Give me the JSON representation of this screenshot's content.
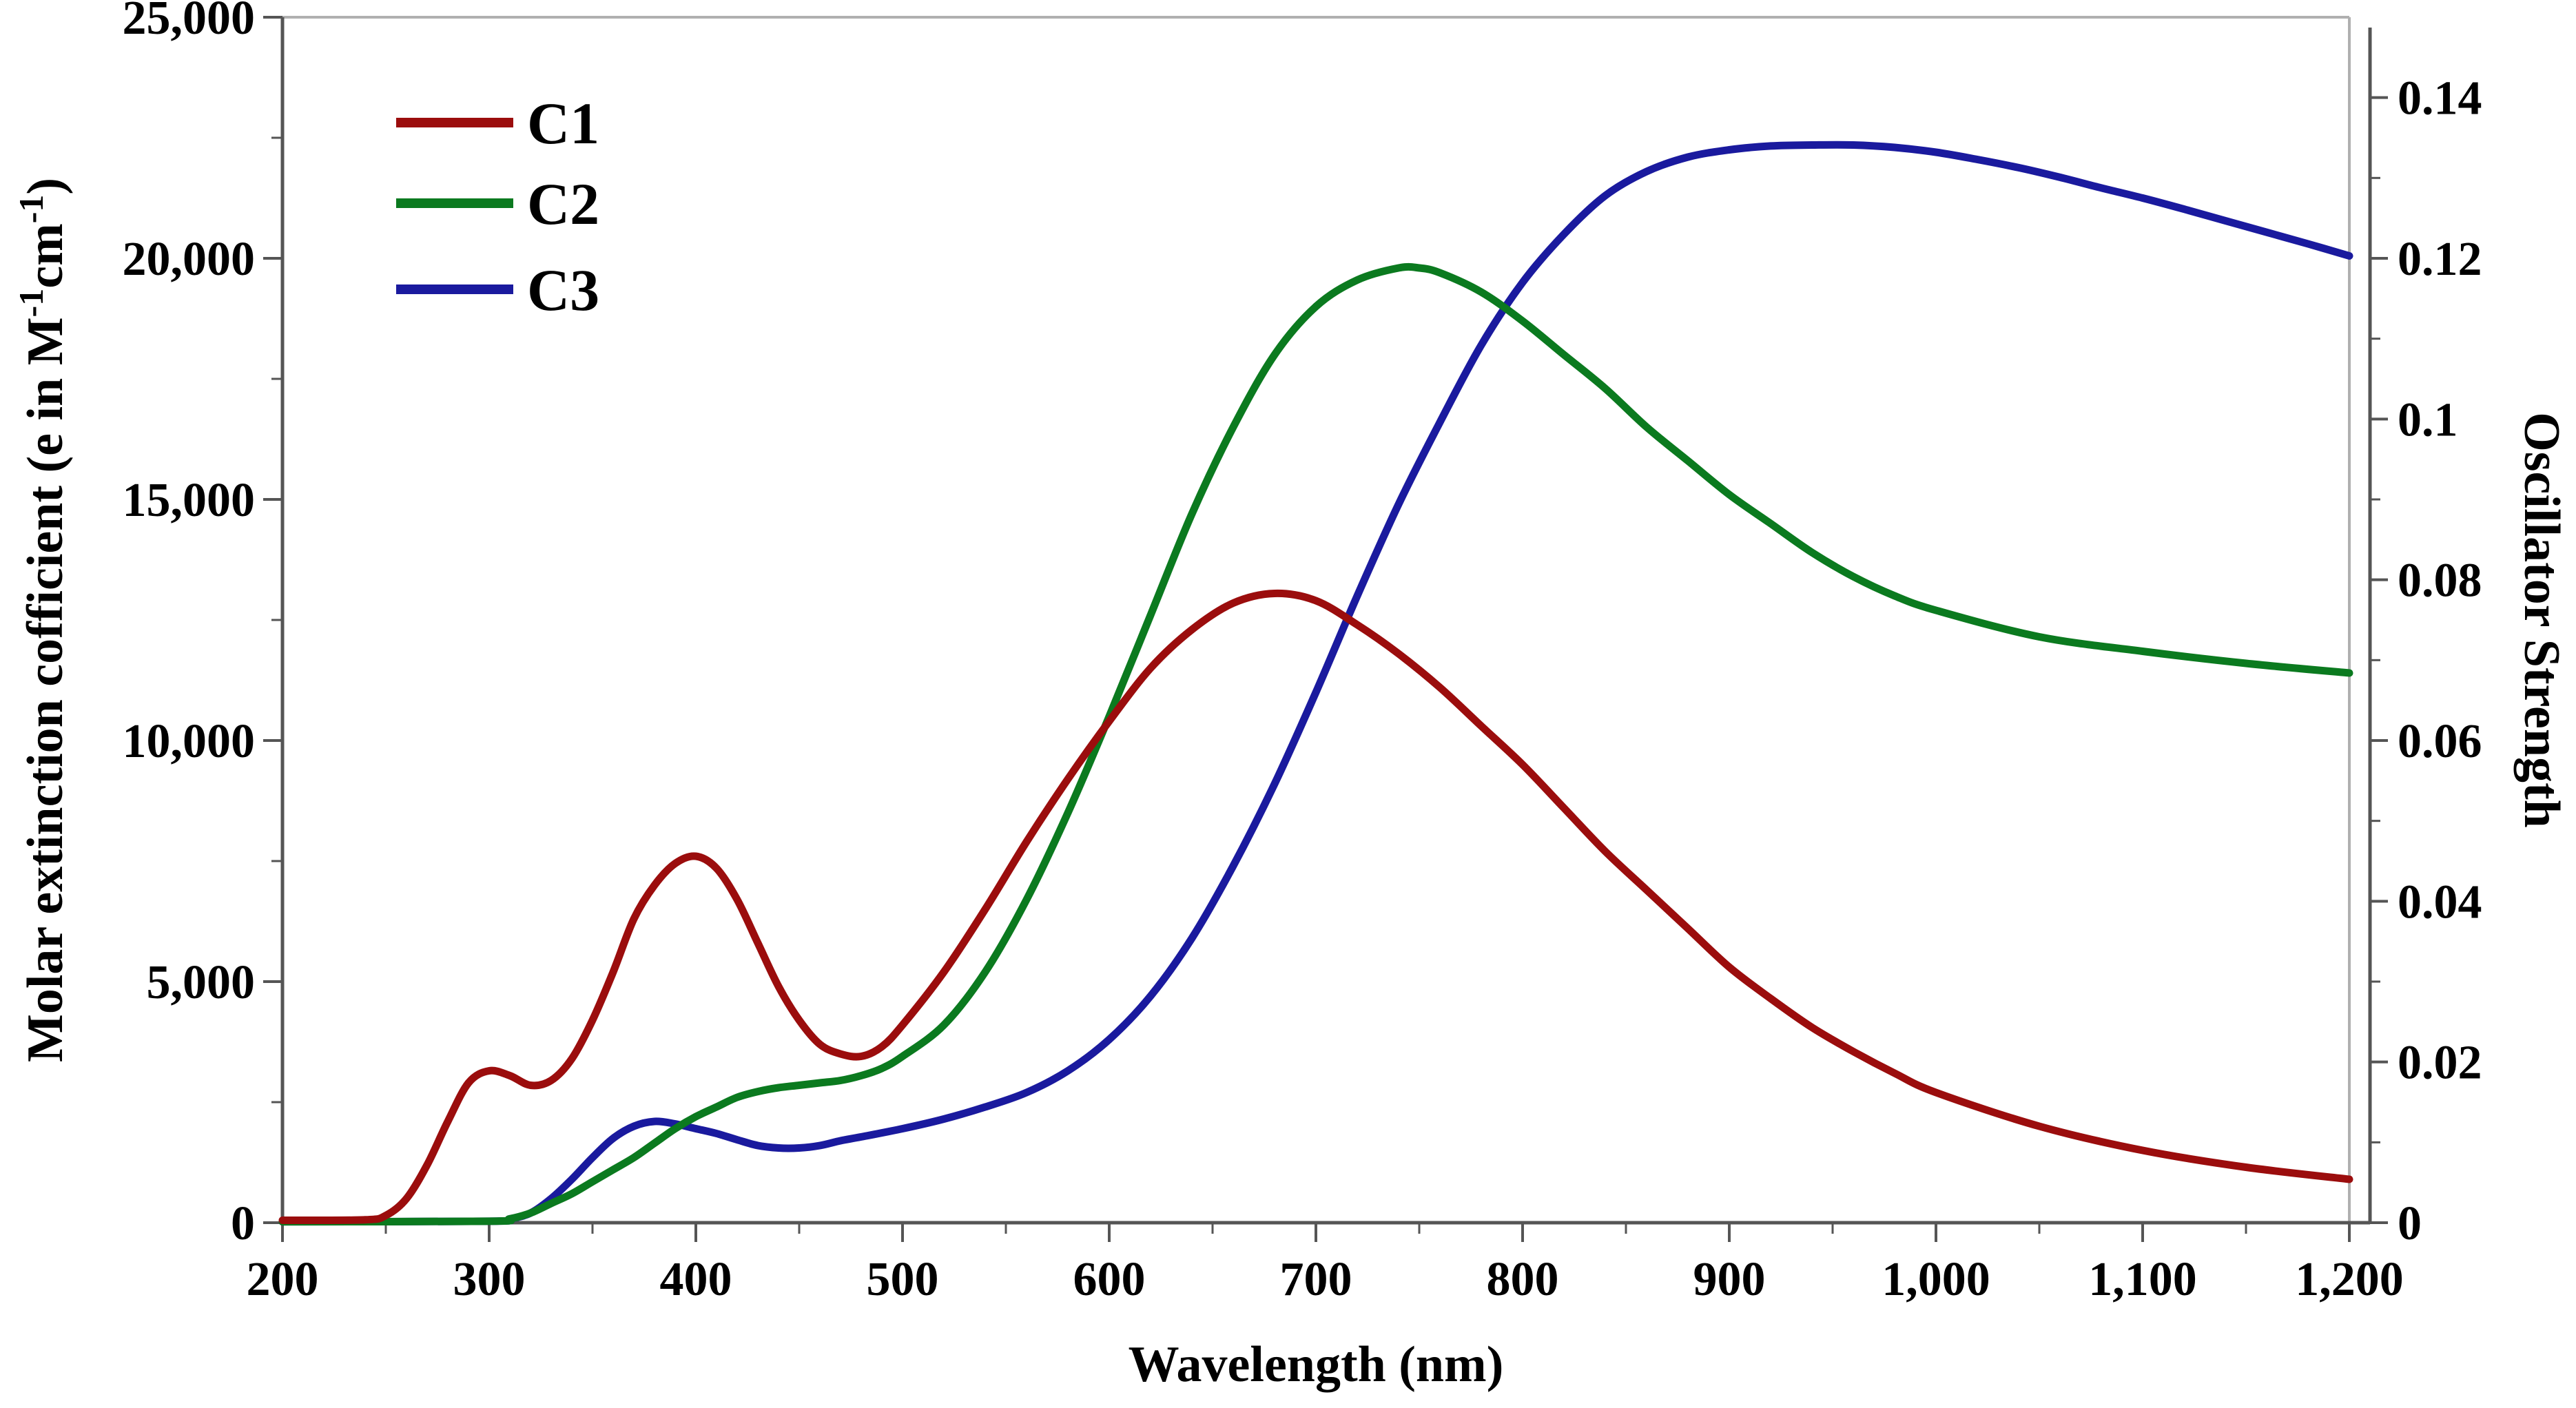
{
  "chart_data": {
    "type": "line",
    "title": "",
    "xlabel": "Wavelength (nm)",
    "ylabel_main": "Molar extinction cofficient (e in M",
    "ylabel_sup1": "-1",
    "ylabel_mid": "cm",
    "ylabel_sup2": "-1",
    "ylabel_end": ")",
    "y2label": "Oscillator Strength",
    "xlim": [
      200,
      1200
    ],
    "ylim": [
      0,
      25000
    ],
    "y2lim": [
      0,
      0.15
    ],
    "x_ticks": [
      200,
      300,
      400,
      500,
      600,
      700,
      800,
      900,
      1000,
      1100,
      1200
    ],
    "x_tick_labels": [
      "200",
      "300",
      "400",
      "500",
      "600",
      "700",
      "800",
      "900",
      "1,000",
      "1,100",
      "1,200"
    ],
    "y_ticks": [
      0,
      5000,
      10000,
      15000,
      20000,
      25000
    ],
    "y_tick_labels": [
      "0",
      "5,000",
      "10,000",
      "15,000",
      "20,000",
      "25,000"
    ],
    "y2_ticks": [
      0,
      0.02,
      0.04,
      0.06,
      0.08,
      0.1,
      0.12,
      0.14
    ],
    "y2_tick_labels": [
      "0",
      "0.02",
      "0.04",
      "0.06",
      "0.08",
      "0.1",
      "0.12",
      "0.14"
    ],
    "grid": false,
    "legend_position": "top-left",
    "series": [
      {
        "name": "C1",
        "color": "#9b0d0d",
        "x": [
          200,
          240,
          250,
          260,
          270,
          280,
          290,
          300,
          310,
          320,
          330,
          340,
          350,
          360,
          370,
          380,
          390,
          400,
          410,
          420,
          430,
          440,
          450,
          460,
          470,
          480,
          490,
          500,
          520,
          540,
          560,
          580,
          600,
          620,
          640,
          660,
          680,
          700,
          720,
          740,
          760,
          780,
          800,
          820,
          840,
          860,
          880,
          900,
          920,
          940,
          960,
          980,
          1000,
          1050,
          1100,
          1150,
          1200
        ],
        "y": [
          50,
          60,
          150,
          500,
          1200,
          2100,
          2900,
          3150,
          3050,
          2850,
          2950,
          3400,
          4200,
          5200,
          6300,
          7000,
          7450,
          7600,
          7350,
          6700,
          5800,
          4900,
          4200,
          3700,
          3500,
          3450,
          3650,
          4100,
          5200,
          6500,
          7900,
          9200,
          10400,
          11500,
          12300,
          12850,
          13050,
          12900,
          12400,
          11800,
          11100,
          10300,
          9500,
          8600,
          7700,
          6900,
          6100,
          5300,
          4650,
          4050,
          3550,
          3100,
          2700,
          2000,
          1500,
          1150,
          900
        ]
      },
      {
        "name": "C2",
        "color": "#0b7a1f",
        "x": [
          200,
          300,
          310,
          320,
          330,
          340,
          350,
          360,
          370,
          380,
          390,
          400,
          410,
          420,
          430,
          440,
          450,
          460,
          470,
          480,
          490,
          500,
          520,
          540,
          560,
          580,
          600,
          620,
          640,
          660,
          680,
          700,
          720,
          740,
          750,
          760,
          780,
          800,
          820,
          840,
          860,
          880,
          900,
          920,
          940,
          960,
          980,
          1000,
          1050,
          1100,
          1150,
          1200
        ],
        "y": [
          20,
          30,
          80,
          200,
          400,
          600,
          850,
          1100,
          1350,
          1650,
          1950,
          2200,
          2400,
          2600,
          2720,
          2800,
          2850,
          2900,
          2950,
          3050,
          3200,
          3450,
          4100,
          5200,
          6700,
          8500,
          10500,
          12600,
          14700,
          16500,
          18000,
          19000,
          19550,
          19800,
          19800,
          19700,
          19300,
          18700,
          18000,
          17300,
          16500,
          15800,
          15100,
          14500,
          13900,
          13400,
          13000,
          12700,
          12150,
          11850,
          11600,
          11400
        ]
      },
      {
        "name": "C3",
        "color": "#1a1a9e",
        "x": [
          200,
          300,
          310,
          320,
          330,
          340,
          350,
          360,
          370,
          380,
          390,
          400,
          410,
          420,
          430,
          440,
          450,
          460,
          470,
          480,
          500,
          520,
          540,
          560,
          580,
          600,
          620,
          640,
          660,
          680,
          700,
          720,
          740,
          760,
          780,
          800,
          820,
          840,
          860,
          880,
          900,
          920,
          940,
          960,
          980,
          1000,
          1020,
          1040,
          1060,
          1080,
          1100,
          1120,
          1140,
          1160,
          1180,
          1200
        ],
        "y": [
          20,
          30,
          80,
          200,
          500,
          900,
          1350,
          1750,
          2000,
          2100,
          2050,
          1950,
          1850,
          1720,
          1600,
          1550,
          1550,
          1600,
          1700,
          1780,
          1950,
          2150,
          2400,
          2700,
          3150,
          3800,
          4700,
          5900,
          7400,
          9100,
          11000,
          13000,
          14900,
          16600,
          18200,
          19500,
          20500,
          21300,
          21800,
          22100,
          22250,
          22330,
          22350,
          22350,
          22300,
          22200,
          22050,
          21880,
          21680,
          21460,
          21250,
          21020,
          20780,
          20540,
          20300,
          20050
        ]
      }
    ]
  }
}
